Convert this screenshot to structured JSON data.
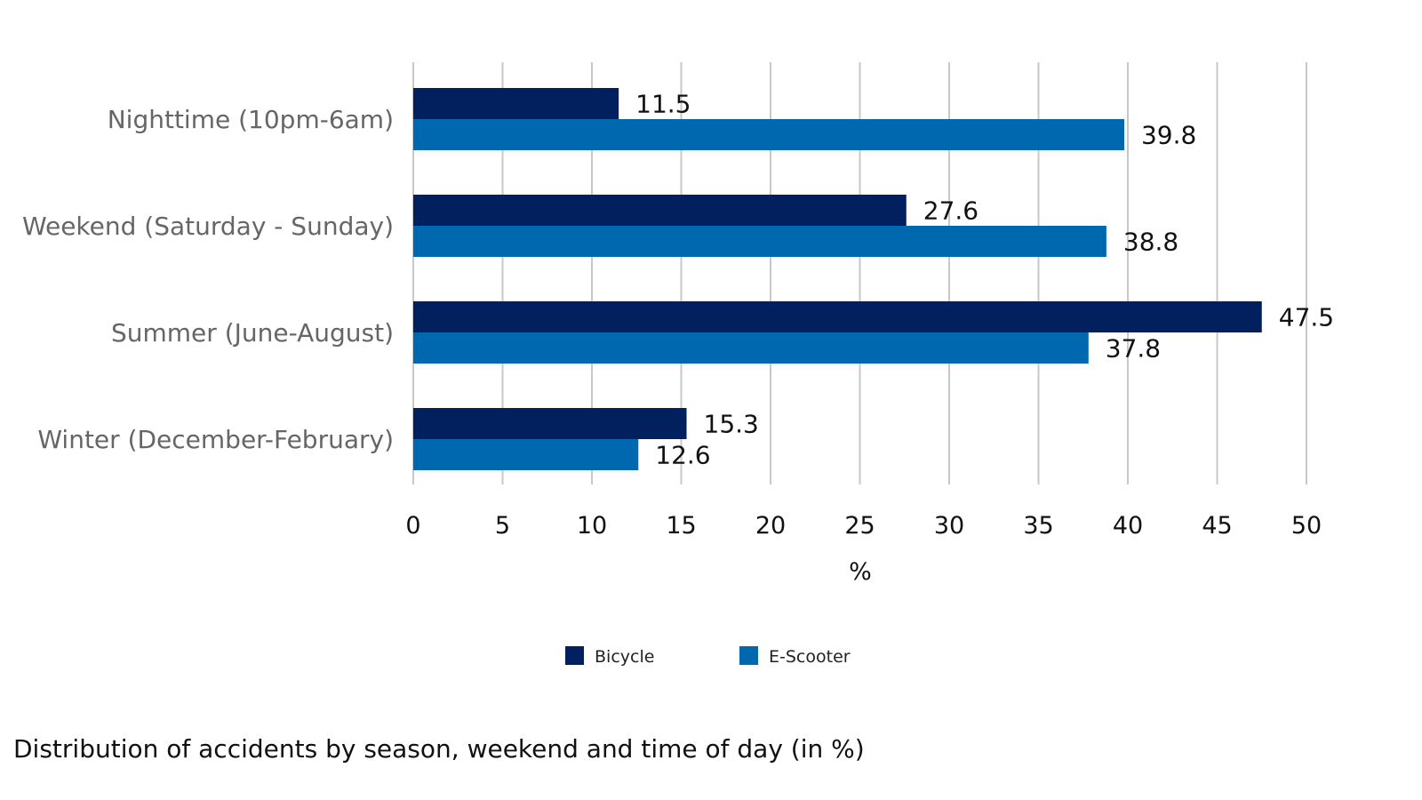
{
  "caption": "Distribution of accidents by season, weekend and time of day (in %)",
  "chart_data": {
    "type": "bar",
    "orientation": "horizontal",
    "categories": [
      "Nighttime (10pm-6am)",
      "Weekend (Saturday - Sunday)",
      "Summer (June-August)",
      "Winter (December-February)"
    ],
    "series": [
      {
        "name": "Bicycle",
        "values": [
          11.5,
          27.6,
          47.5,
          15.3
        ],
        "color": "#02205e"
      },
      {
        "name": "E-Scooter",
        "values": [
          39.8,
          38.8,
          37.8,
          12.6
        ],
        "color": "#0068ae"
      }
    ],
    "xlabel": "%",
    "xlim": [
      0,
      50
    ],
    "xticks": [
      0,
      5,
      10,
      15,
      20,
      25,
      30,
      35,
      40,
      45,
      50
    ],
    "grid": "vertical",
    "legend": "bottom",
    "data_labels": true
  }
}
